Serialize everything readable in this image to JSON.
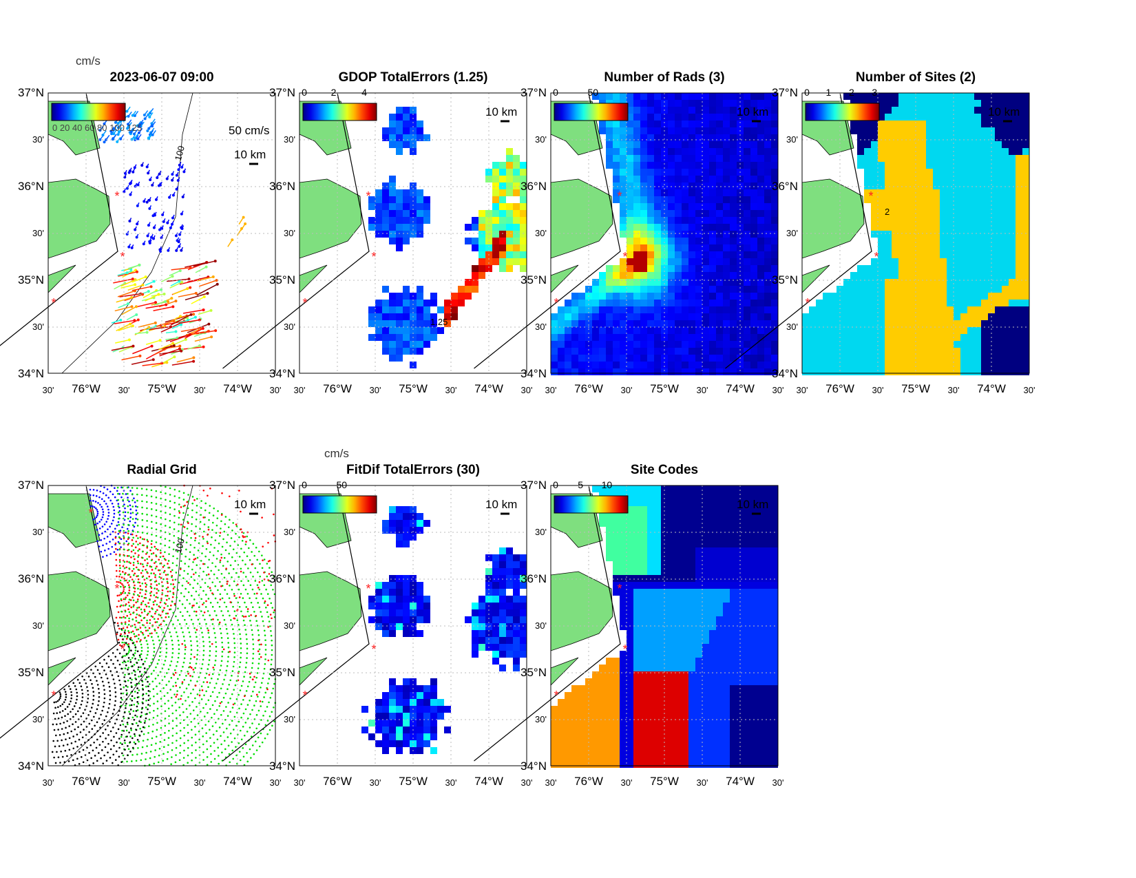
{
  "figure": {
    "timestamp": "2023-06-07 09:00",
    "lat_ticks": [
      "37°N",
      "30'",
      "36°N",
      "30'",
      "35°N",
      "30'",
      "34°N"
    ],
    "lon_ticks": [
      "30'",
      "76°W",
      "30'",
      "75°W",
      "30'",
      "74°W",
      "30'"
    ],
    "scale_label": "10 km",
    "contour_label": "100"
  },
  "panels": [
    {
      "id": "vectors",
      "title": "2023-06-07 09:00",
      "cbar_unit": "cm/s",
      "cbar_ticks": [],
      "cbar_overlap_text": "0 20 40 60 80 100 125",
      "ref_vector": "50 cm/s",
      "scale": "10 km"
    },
    {
      "id": "gdop",
      "title": "GDOP TotalErrors (1.25)",
      "cbar_ticks": [
        "0",
        "2",
        "4"
      ],
      "scale": "10 km",
      "contour": "1.25"
    },
    {
      "id": "nrads",
      "title": "Number of Rads (3)",
      "cbar_ticks": [
        "0",
        "50"
      ],
      "scale": "10 km"
    },
    {
      "id": "nsites",
      "title": "Number of Sites (2)",
      "cbar_ticks": [
        "0",
        "1",
        "2",
        "3"
      ],
      "scale": "10 km",
      "contour": "2"
    },
    {
      "id": "radgrid",
      "title": "Radial Grid",
      "cbar_ticks": [],
      "scale": "10 km"
    },
    {
      "id": "fitdif",
      "title": "FitDif TotalErrors (30)",
      "cbar_unit": "cm/s",
      "cbar_ticks": [
        "0",
        "50"
      ],
      "scale": "10 km"
    },
    {
      "id": "sitecodes",
      "title": "Site Codes",
      "cbar_ticks": [
        "0",
        "5",
        "10"
      ],
      "scale": "10 km"
    }
  ],
  "colors": {
    "land": "#7fdf7f",
    "site": "#ff2020"
  }
}
